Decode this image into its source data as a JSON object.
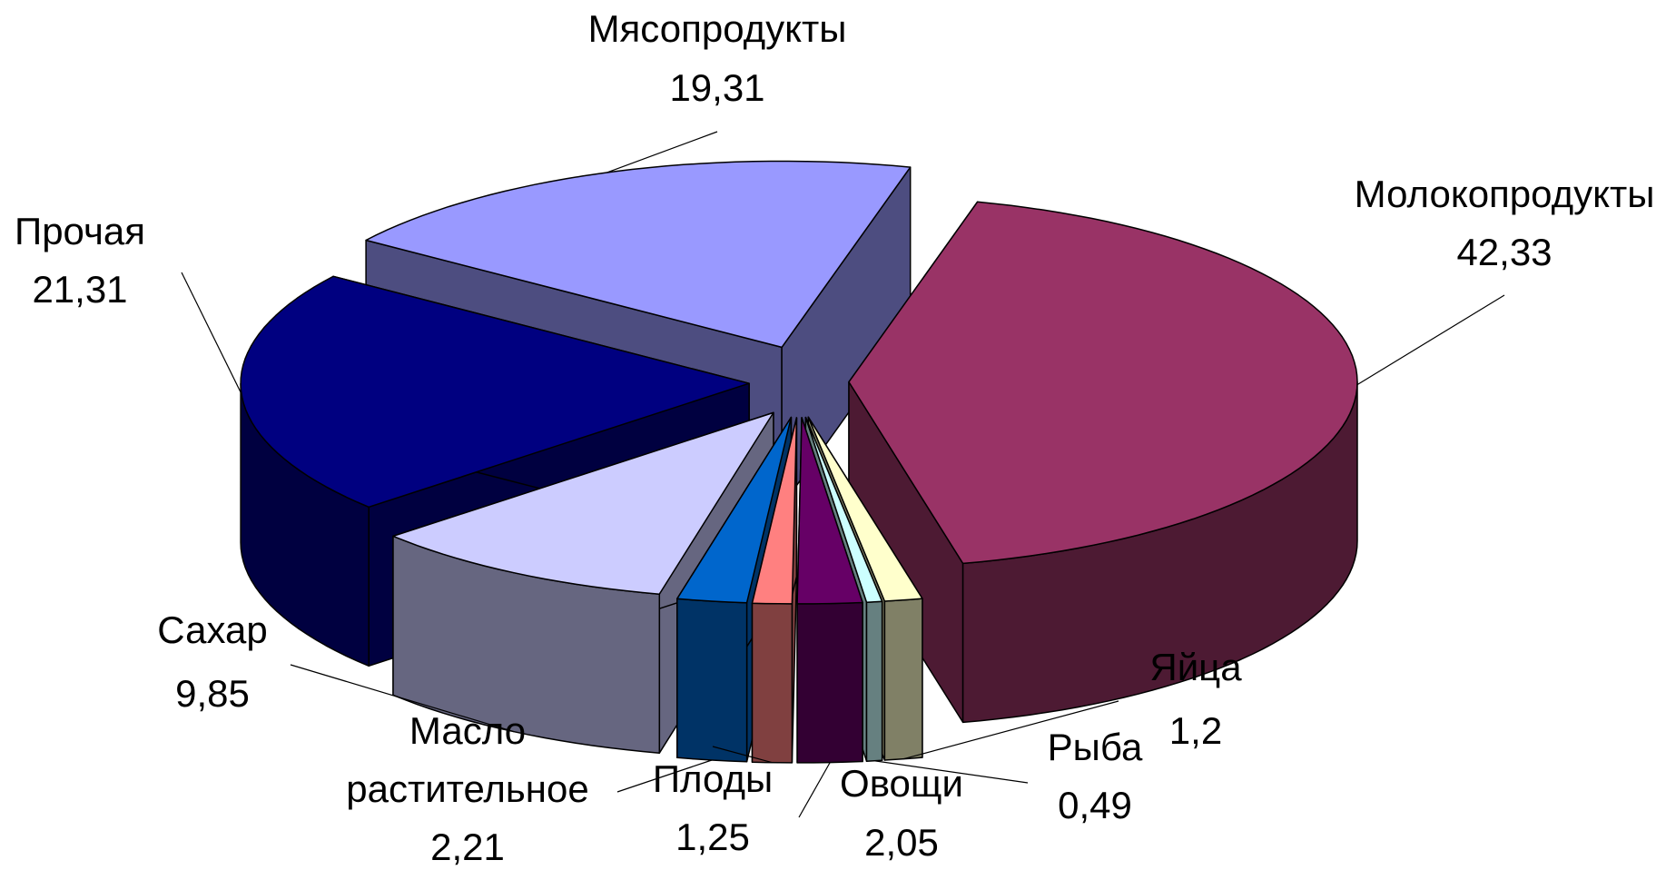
{
  "chart_data": {
    "type": "pie",
    "categories": [
      "Молокопродукты",
      "Яйца",
      "Рыба",
      "Овощи",
      "Плоды",
      "Масло растительное",
      "Сахар",
      "Прочая",
      "Мясопродукты"
    ],
    "values": [
      42.33,
      1.2,
      0.49,
      2.05,
      1.25,
      2.21,
      9.85,
      21.31,
      19.31
    ],
    "value_labels": [
      "42,33",
      "1,2",
      "0,49",
      "2,05",
      "1,25",
      "2,21",
      "9,85",
      "21,31",
      "19,31"
    ],
    "colors": [
      "#993366",
      "#ffffcc",
      "#ccffff",
      "#660066",
      "#ff8080",
      "#0066cc",
      "#ccccff",
      "#000080",
      "#9999ff"
    ]
  }
}
